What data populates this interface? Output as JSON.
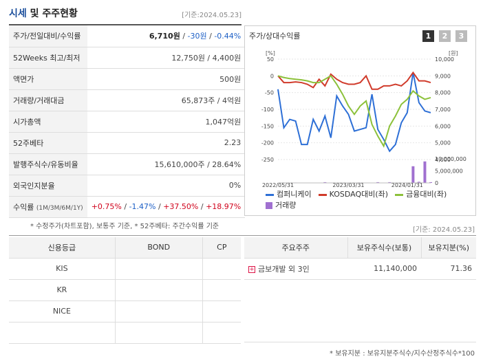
{
  "header": {
    "title_main": "시세",
    "title_rest": " 및 주주현황",
    "date_stamp": "[기준:2024.05.23]"
  },
  "info_rows": [
    {
      "key": "주가/전일대비/수익률",
      "price": "6,710원",
      "sep1": " / ",
      "change": "-30원",
      "sep2": " / ",
      "pct": "-0.44%"
    },
    {
      "key": "52Weeks 최고/최저",
      "value": "12,750원 / 4,400원"
    },
    {
      "key": "액면가",
      "value": "500원"
    },
    {
      "key": "거래량/거래대금",
      "value": "65,873주 / 4억원"
    },
    {
      "key": "시가총액",
      "value": "1,047억원"
    },
    {
      "key": "52주베타",
      "value": "2.23"
    },
    {
      "key": "발행주식수/유동비율",
      "value": "15,610,000주 / 28.64%"
    },
    {
      "key": "외국인지분율",
      "value": "0%"
    },
    {
      "key": "수익률",
      "key_sub": "(1M/3M/6M/1Y)",
      "r1": "+0.75%",
      "r2": "-1.47%",
      "r3": "+37.50%",
      "r4": "+18.97%",
      "sep": " / "
    }
  ],
  "notes": {
    "note1": "* 수정주가(차트포함), 보통주 기준, * 52주베타: 주간수익률 기준",
    "note2": "[기준: 2024.05.23]",
    "note3": "* 보유지분 : 보유지분주식수/지수산정주식수*100"
  },
  "chart_panel": {
    "title": "주가/상대수익률",
    "pages": [
      "1",
      "2",
      "3"
    ],
    "left_unit": "[%]",
    "right_unit": "[원]"
  },
  "chart_data": {
    "type": "line",
    "x_labels": [
      "2022/05/31",
      "2023/03/31",
      "2024/01/31"
    ],
    "left_axis": {
      "ticks": [
        "50",
        "0",
        "-50",
        "-100",
        "-150",
        "-200",
        "-250"
      ],
      "range": [
        -270,
        60
      ]
    },
    "right_axis": {
      "ticks": [
        "10,000",
        "9,000",
        "8,000",
        "7,000",
        "6,000",
        "5,000",
        "4,000"
      ],
      "range": [
        4000,
        10000
      ]
    },
    "volume_axis": {
      "ticks": [
        "10,000,000",
        "5,000,000",
        "0"
      ]
    },
    "series": [
      {
        "name": "컴퍼니케이",
        "color": "#2d6fd6",
        "values": [
          -40,
          -155,
          -130,
          -135,
          -205,
          -205,
          -130,
          -165,
          -120,
          -185,
          -60,
          -90,
          -115,
          -165,
          -160,
          -155,
          -55,
          -160,
          -190,
          -225,
          -205,
          -140,
          -110,
          10,
          -80,
          -105,
          -110
        ]
      },
      {
        "name": "KOSDAQ대비(좌)",
        "color": "#d03a2a",
        "values": [
          0,
          -20,
          -20,
          -18,
          -20,
          -25,
          -35,
          -10,
          -30,
          5,
          -10,
          -20,
          -25,
          -25,
          -20,
          0,
          -40,
          -40,
          -30,
          -30,
          -25,
          -30,
          -15,
          10,
          -15,
          -15,
          -20
        ]
      },
      {
        "name": "금융대비(좌)",
        "color": "#8cc13a",
        "values": [
          0,
          -5,
          -8,
          -10,
          -12,
          -15,
          -20,
          -20,
          -10,
          0,
          -25,
          -55,
          -90,
          -115,
          -90,
          -75,
          -145,
          -180,
          -210,
          -150,
          -120,
          -85,
          -70,
          -45,
          -60,
          -70,
          -65
        ]
      }
    ],
    "volume": {
      "name": "거래량",
      "color": "#a070d0",
      "values": [
        0,
        0,
        0,
        0.1,
        0,
        0,
        0,
        0,
        0.2,
        0.1,
        0,
        0,
        0,
        0,
        0.1,
        0,
        0,
        0.2,
        0,
        0.2,
        0,
        0,
        0,
        4.5,
        0.3,
        5.8,
        0.2
      ]
    }
  },
  "credit_table": {
    "headers": [
      "신용등급",
      "BOND",
      "CP"
    ],
    "rows": [
      [
        "KIS",
        "",
        ""
      ],
      [
        "KR",
        "",
        ""
      ],
      [
        "NICE",
        "",
        ""
      ],
      [
        "",
        "",
        ""
      ]
    ]
  },
  "holders_table": {
    "headers": [
      "주요주주",
      "보유주식수(보통)",
      "보유지분(%)"
    ],
    "rows": [
      [
        "금보개발 외 3인",
        "11,140,000",
        "71.36"
      ]
    ]
  }
}
